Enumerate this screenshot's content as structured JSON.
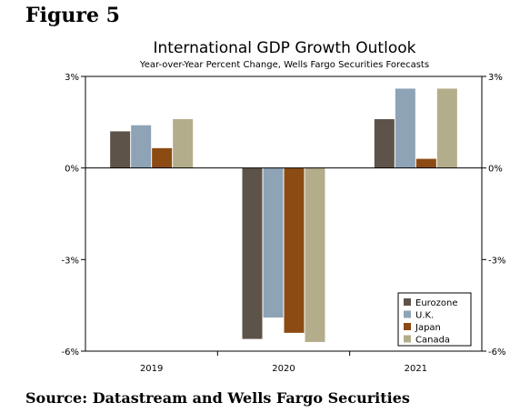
{
  "figure_label": "Figure 5",
  "source": "Source: Datastream and Wells Fargo Securities",
  "chart_data": {
    "type": "bar",
    "title": "International GDP Growth Outlook",
    "subtitle": "Year-over-Year Percent Change, Wells Fargo Securities Forecasts",
    "categories": [
      "2019",
      "2020",
      "2021"
    ],
    "series": [
      {
        "name": "Eurozone",
        "color": "#5e5349",
        "values": [
          1.2,
          -5.6,
          1.6
        ]
      },
      {
        "name": "U.K.",
        "color": "#8ea3b5",
        "values": [
          1.4,
          -4.9,
          2.6
        ]
      },
      {
        "name": "Japan",
        "color": "#8b4b13",
        "values": [
          0.65,
          -5.4,
          0.3
        ]
      },
      {
        "name": "Canada",
        "color": "#b3ad8b",
        "values": [
          1.6,
          -5.7,
          2.6
        ]
      }
    ],
    "ylim": [
      -6,
      3
    ],
    "yticks": [
      3,
      0,
      -3,
      -6
    ],
    "ytick_labels": [
      "3%",
      "0%",
      "-3%",
      "-6%"
    ],
    "grid": false,
    "legend_position": "bottom-right"
  }
}
